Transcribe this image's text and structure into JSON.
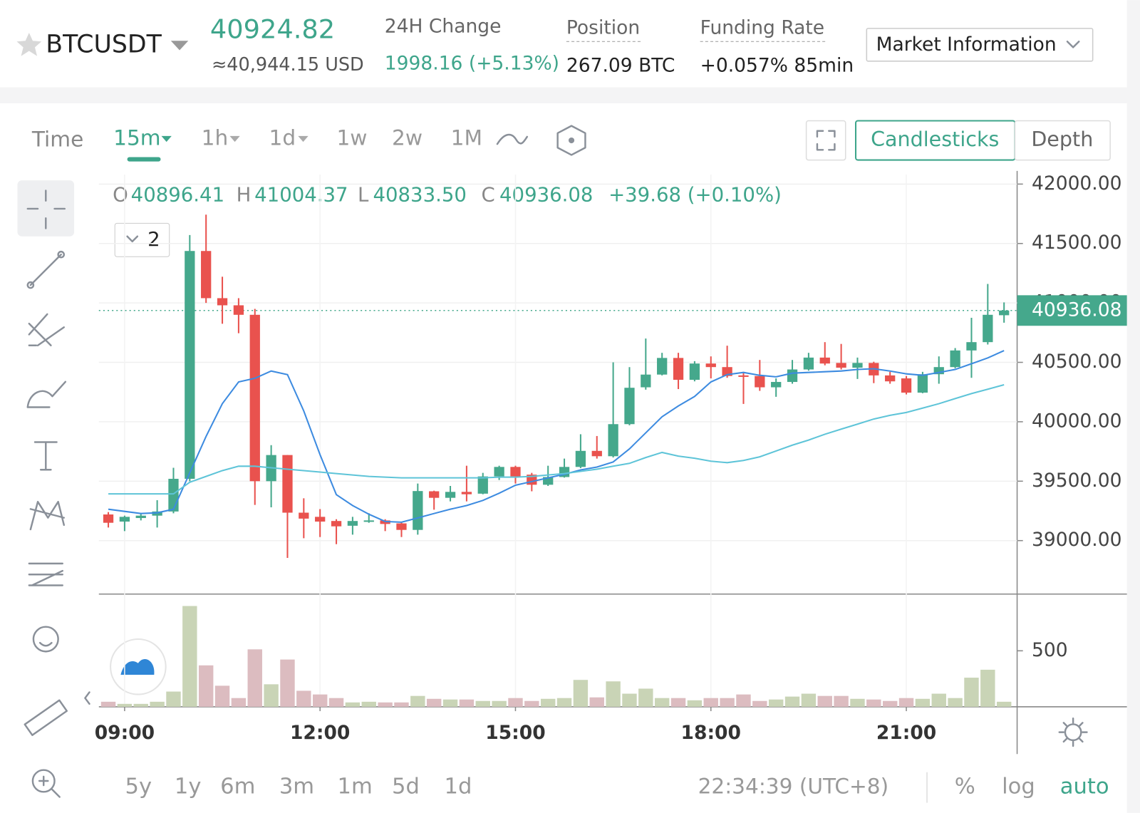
{
  "header": {
    "symbol": "BTCUSDT",
    "last_price": "40924.82",
    "usd_price": "≈40,944.15 USD",
    "change_label": "24H Change",
    "change_value": "1998.16 (+5.13%)",
    "position_label": "Position",
    "position_value": "267.09 BTC",
    "funding_label": "Funding Rate",
    "funding_value": "+0.057% 85min",
    "market_button": "Market Information"
  },
  "toolbar": {
    "time_label": "Time",
    "intervals": [
      "15m",
      "1h",
      "1d",
      "1w",
      "2w",
      "1M"
    ],
    "views": [
      "Candlesticks",
      "Depth"
    ]
  },
  "legend": {
    "items": [
      {
        "key": "O",
        "value": "40896.41"
      },
      {
        "key": "H",
        "value": "41004.37"
      },
      {
        "key": "L",
        "value": "40833.50"
      },
      {
        "key": "C",
        "value": "40936.08"
      }
    ],
    "change": "+39.68 (+0.10%)",
    "indicators": "2"
  },
  "footer": {
    "ranges": [
      "5y",
      "1y",
      "6m",
      "3m",
      "1m",
      "5d",
      "1d"
    ],
    "clock": "22:34:39 (UTC+8)",
    "options": [
      "%",
      "log",
      "auto"
    ]
  },
  "chart_data": {
    "type": "candlestick",
    "categories": [
      null,
      "09:00",
      null,
      null,
      null,
      null,
      null,
      null,
      null,
      null,
      null,
      null,
      null,
      "12:00",
      null,
      null,
      null,
      null,
      null,
      null,
      null,
      null,
      null,
      null,
      null,
      "15:00",
      null,
      null,
      null,
      null,
      null,
      null,
      null,
      null,
      null,
      null,
      null,
      "18:00",
      null,
      null,
      null,
      null,
      null,
      null,
      null,
      null,
      null,
      null,
      null,
      "21:00",
      null,
      null,
      null,
      null,
      null,
      null
    ],
    "open": [
      39220,
      39160,
      39190,
      39210,
      39245,
      39520,
      41437,
      41040,
      40980,
      40900,
      39500,
      39720,
      39235,
      39200,
      39165,
      39125,
      39160,
      39170,
      39145,
      39090,
      39415,
      39360,
      39410,
      39395,
      39540,
      39620,
      39555,
      39470,
      39535,
      39620,
      39755,
      39710,
      39980,
      40290,
      40397,
      40537,
      40353,
      40490,
      40460,
      40390,
      40385,
      40290,
      40335,
      40440,
      40540,
      40495,
      40455,
      40495,
      40390,
      40365,
      40245,
      40400,
      40460,
      40600,
      40670,
      40896.41
    ],
    "high": [
      39240,
      39210,
      39230,
      39340,
      39613,
      41571,
      41743,
      41220,
      41040,
      40950,
      39803,
      39720,
      39356,
      39265,
      39180,
      39200,
      39230,
      39180,
      39160,
      39480,
      39420,
      39460,
      39630,
      39570,
      39630,
      39630,
      39570,
      39630,
      39690,
      39895,
      39880,
      40500,
      40460,
      40700,
      40580,
      40580,
      40510,
      40550,
      40640,
      40420,
      40520,
      40365,
      40520,
      40580,
      40670,
      40655,
      40540,
      40505,
      40420,
      40385,
      40420,
      40550,
      40620,
      40875,
      41160,
      41004.37
    ],
    "low": [
      39110,
      39080,
      39170,
      39110,
      39230,
      39500,
      41000,
      40825,
      40745,
      39300,
      39280,
      38854,
      39020,
      39030,
      38970,
      39050,
      39150,
      39080,
      39030,
      39050,
      39260,
      39330,
      39330,
      39390,
      39510,
      39480,
      39415,
      39460,
      39530,
      39610,
      39690,
      39700,
      39970,
      40270,
      40390,
      40275,
      40340,
      40365,
      40370,
      40150,
      40260,
      40210,
      40320,
      40430,
      40475,
      40440,
      40360,
      40325,
      40320,
      40230,
      40240,
      40320,
      40450,
      40370,
      40650,
      40833.5
    ],
    "close": [
      39150,
      39200,
      39210,
      39245,
      39520,
      41437,
      41040,
      40980,
      40900,
      39500,
      39720,
      39235,
      39185,
      39160,
      39120,
      39165,
      39170,
      39140,
      39090,
      39417,
      39360,
      39410,
      39390,
      39540,
      39620,
      39540,
      39470,
      39535,
      39620,
      39755,
      39710,
      39980,
      40286,
      40397,
      40537,
      40353,
      40490,
      40460,
      40385,
      40380,
      40290,
      40335,
      40440,
      40540,
      40490,
      40455,
      40495,
      40390,
      40340,
      40245,
      40400,
      40460,
      40600,
      40670,
      40900,
      40936.08
    ],
    "volume": [
      45,
      26,
      26,
      45,
      136,
      900,
      370,
      188,
      78,
      513,
      201,
      422,
      143,
      110,
      78,
      39,
      45,
      39,
      39,
      97,
      71,
      65,
      65,
      52,
      52,
      78,
      52,
      71,
      78,
      240,
      84,
      227,
      117,
      162,
      78,
      78,
      58,
      78,
      78,
      110,
      52,
      65,
      91,
      117,
      97,
      97,
      71,
      65,
      52,
      78,
      71,
      117,
      78,
      260,
      331,
      45
    ],
    "moving_averages": [
      {
        "color": "#3d8be0",
        "values": [
          39264,
          39246,
          39228,
          39234,
          39264,
          39570,
          39876,
          40152,
          40335,
          40366,
          40427,
          40397,
          40091,
          39723,
          39387,
          39295,
          39222,
          39161,
          39155,
          39191,
          39228,
          39264,
          39295,
          39338,
          39399,
          39466,
          39497,
          39528,
          39558,
          39595,
          39619,
          39662,
          39772,
          39907,
          40042,
          40133,
          40213,
          40335,
          40397,
          40415,
          40391,
          40378,
          40409,
          40415,
          40421,
          40427,
          40440,
          40446,
          40427,
          40403,
          40391,
          40415,
          40440,
          40488,
          40537,
          40599
        ]
      },
      {
        "color": "#5ec4d8",
        "values": [
          39393,
          39393,
          39393,
          39393,
          39393,
          39491,
          39540,
          39589,
          39626,
          39626,
          39613,
          39601,
          39589,
          39577,
          39564,
          39552,
          39540,
          39534,
          39528,
          39528,
          39528,
          39528,
          39528,
          39528,
          39534,
          39534,
          39540,
          39552,
          39564,
          39583,
          39601,
          39626,
          39650,
          39699,
          39742,
          39711,
          39693,
          39668,
          39656,
          39674,
          39705,
          39754,
          39803,
          39846,
          39895,
          39938,
          39980,
          40023,
          40054,
          40078,
          40115,
          40152,
          40195,
          40237,
          40274,
          40311
        ]
      }
    ],
    "up_color": "#45a88c",
    "down_color": "#e9524e",
    "up_volume_color": "#c9d4b6",
    "down_volume_color": "#dcbcc0",
    "ylim": [
      38550,
      42080
    ],
    "yticks": [
      {
        "value": 39000,
        "label": "39000.00"
      },
      {
        "value": 39500,
        "label": "39500.00"
      },
      {
        "value": 40000,
        "label": "40000.00"
      },
      {
        "value": 40500,
        "label": "40500.00"
      },
      {
        "value": 41000,
        "label": "41000.00"
      },
      {
        "value": 41500,
        "label": "41500.00"
      },
      {
        "value": 42000,
        "label": "42000.00"
      }
    ],
    "vol_ylim": [
      0,
      1000
    ],
    "vol_yticks": [
      500
    ],
    "grid": true
  }
}
